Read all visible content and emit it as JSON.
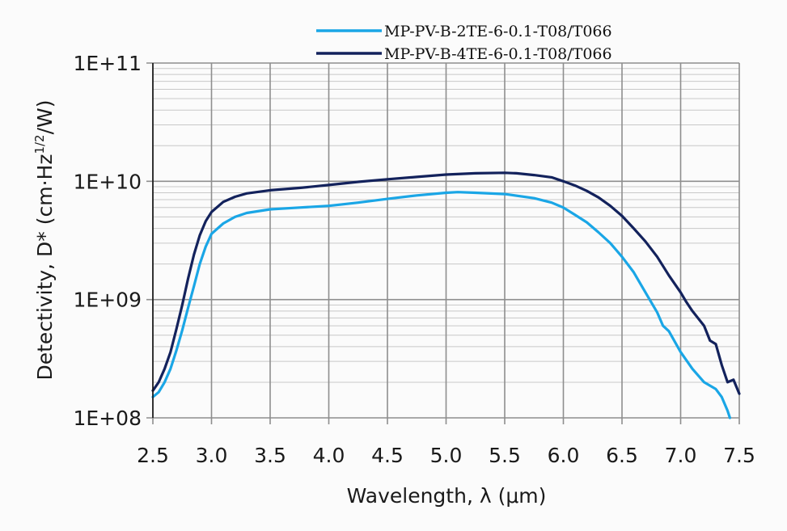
{
  "chart_data": {
    "type": "line",
    "xlabel": "Wavelength, λ (μm)",
    "ylabel": "Detectivity, D* (cm·Hz",
    "ylabel_sup": "1/2",
    "ylabel_end": "/W)",
    "xlim": [
      2.5,
      7.5
    ],
    "ylim": [
      100000000,
      100000000000
    ],
    "yscale": "log",
    "grid": true,
    "legend_position": "top",
    "x_ticks": [
      2.5,
      3.0,
      3.5,
      4.0,
      4.5,
      5.0,
      5.5,
      6.0,
      6.5,
      7.0,
      7.5
    ],
    "x_tick_labels": [
      "2.5",
      "3.0",
      "3.5",
      "4.0",
      "4.5",
      "5.0",
      "5.5",
      "6.0",
      "6.5",
      "7.0",
      "7.5"
    ],
    "y_ticks": [
      100000000,
      1000000000,
      10000000000,
      100000000000
    ],
    "y_tick_labels": [
      "1E+08",
      "1E+09",
      "1E+10",
      "1E+11"
    ],
    "series": [
      {
        "name": "MP-PV-B-2TE-6-0.1-T08/T066",
        "color": "#1aa6e6",
        "x": [
          2.5,
          2.55,
          2.6,
          2.65,
          2.7,
          2.75,
          2.8,
          2.85,
          2.9,
          2.95,
          3.0,
          3.1,
          3.2,
          3.3,
          3.5,
          3.75,
          4.0,
          4.25,
          4.5,
          4.75,
          5.0,
          5.1,
          5.25,
          5.5,
          5.75,
          5.9,
          6.0,
          6.1,
          6.2,
          6.3,
          6.4,
          6.5,
          6.6,
          6.7,
          6.8,
          6.85,
          6.9,
          7.0,
          7.1,
          7.2,
          7.3,
          7.35,
          7.4,
          7.42
        ],
        "y": [
          150000000,
          165000000,
          200000000,
          260000000,
          370000000,
          550000000,
          850000000,
          1300000000,
          2000000000,
          2800000000,
          3600000000,
          4400000000,
          5000000000,
          5400000000,
          5800000000,
          6000000000,
          6200000000,
          6600000000,
          7100000000,
          7600000000,
          8000000000,
          8100000000,
          8000000000,
          7800000000,
          7200000000,
          6600000000,
          6000000000,
          5200000000,
          4500000000,
          3700000000,
          3000000000,
          2300000000,
          1700000000,
          1150000000,
          780000000,
          600000000,
          540000000,
          360000000,
          260000000,
          200000000,
          175000000,
          150000000,
          115000000,
          100000000
        ]
      },
      {
        "name": "MP-PV-B-4TE-6-0.1-T08/T066",
        "color": "#13225c",
        "x": [
          2.5,
          2.55,
          2.6,
          2.65,
          2.7,
          2.75,
          2.8,
          2.85,
          2.9,
          2.95,
          3.0,
          3.1,
          3.2,
          3.3,
          3.5,
          3.75,
          4.0,
          4.25,
          4.5,
          4.75,
          5.0,
          5.25,
          5.5,
          5.6,
          5.75,
          5.9,
          6.0,
          6.1,
          6.2,
          6.3,
          6.4,
          6.5,
          6.6,
          6.7,
          6.8,
          6.9,
          7.0,
          7.05,
          7.1,
          7.2,
          7.25,
          7.3,
          7.35,
          7.4,
          7.45,
          7.5
        ],
        "y": [
          170000000,
          200000000,
          260000000,
          360000000,
          560000000,
          900000000,
          1500000000,
          2400000000,
          3500000000,
          4600000000,
          5500000000,
          6700000000,
          7400000000,
          7900000000,
          8400000000,
          8800000000,
          9300000000,
          9900000000,
          10400000000,
          10900000000,
          11400000000,
          11700000000,
          11800000000,
          11700000000,
          11300000000,
          10800000000,
          10000000000,
          9200000000,
          8300000000,
          7300000000,
          6200000000,
          5100000000,
          4000000000,
          3100000000,
          2300000000,
          1600000000,
          1150000000,
          950000000,
          800000000,
          600000000,
          450000000,
          420000000,
          280000000,
          200000000,
          210000000,
          160000000
        ]
      }
    ]
  }
}
